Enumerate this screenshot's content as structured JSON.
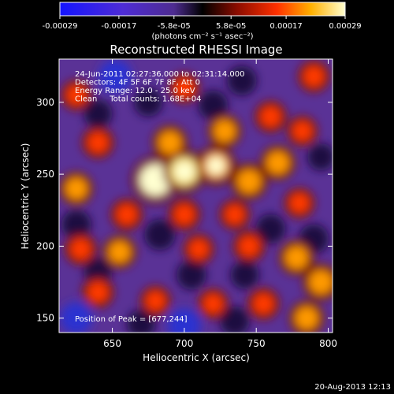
{
  "chart_data": {
    "type": "heatmap",
    "title": "Reconstructed RHESSI Image",
    "xlabel": "Heliocentric X (arcsec)",
    "ylabel": "Heliocentric Y (arcsec)",
    "xlim": [
      613,
      803
    ],
    "ylim": [
      140,
      330
    ],
    "x_ticks": [
      650,
      700,
      750,
      800
    ],
    "y_ticks": [
      150,
      200,
      250,
      300
    ],
    "colorbar": {
      "label": "(photons cm⁻² s⁻¹ asec⁻²)",
      "range": [
        -0.00029,
        0.00029
      ],
      "ticks": [
        "-0.00029",
        "-0.00017",
        "-5.8e-05",
        "5.8e-05",
        "0.00017",
        "0.00029"
      ],
      "tick_values": [
        -0.00029,
        -0.00017,
        -5.8e-05,
        5.8e-05,
        0.00017,
        0.00029
      ]
    },
    "annotations": [
      "24-Jun-2011 02:27:36.000 to 02:31:14.000",
      "Detectors: 4F 5F 6F 7F 8F, Att 0",
      "Energy Range: 12.0 - 25.0 keV",
      "Clean     Total counts: 1.68E+04",
      "Position of Peak = [677,244]"
    ],
    "peak": {
      "x": 677,
      "y": 244
    },
    "bright_regions": [
      {
        "x": 680,
        "y": 246,
        "level": 1.0
      },
      {
        "x": 700,
        "y": 252,
        "level": 0.85
      },
      {
        "x": 722,
        "y": 256,
        "level": 0.7
      },
      {
        "x": 745,
        "y": 245,
        "level": 0.6
      },
      {
        "x": 765,
        "y": 258,
        "level": 0.55
      },
      {
        "x": 690,
        "y": 272,
        "level": 0.55
      },
      {
        "x": 728,
        "y": 280,
        "level": 0.5
      },
      {
        "x": 760,
        "y": 290,
        "level": 0.45
      },
      {
        "x": 782,
        "y": 280,
        "level": 0.4
      },
      {
        "x": 640,
        "y": 272,
        "level": 0.45
      },
      {
        "x": 625,
        "y": 240,
        "level": 0.5
      },
      {
        "x": 660,
        "y": 222,
        "level": 0.45
      },
      {
        "x": 700,
        "y": 222,
        "level": 0.45
      },
      {
        "x": 735,
        "y": 222,
        "level": 0.4
      },
      {
        "x": 780,
        "y": 230,
        "level": 0.4
      },
      {
        "x": 655,
        "y": 196,
        "level": 0.5
      },
      {
        "x": 628,
        "y": 198,
        "level": 0.45
      },
      {
        "x": 710,
        "y": 198,
        "level": 0.4
      },
      {
        "x": 745,
        "y": 200,
        "level": 0.45
      },
      {
        "x": 778,
        "y": 192,
        "level": 0.55
      },
      {
        "x": 795,
        "y": 175,
        "level": 0.6
      },
      {
        "x": 785,
        "y": 150,
        "level": 0.55
      },
      {
        "x": 755,
        "y": 160,
        "level": 0.45
      },
      {
        "x": 720,
        "y": 160,
        "level": 0.4
      },
      {
        "x": 680,
        "y": 162,
        "level": 0.4
      },
      {
        "x": 640,
        "y": 168,
        "level": 0.45
      },
      {
        "x": 625,
        "y": 305,
        "level": 0.4
      },
      {
        "x": 700,
        "y": 310,
        "level": 0.4
      },
      {
        "x": 790,
        "y": 318,
        "level": 0.45
      }
    ],
    "dark_regions": [
      {
        "x": 652,
        "y": 318,
        "level": 0.9
      },
      {
        "x": 740,
        "y": 315,
        "level": 0.6
      },
      {
        "x": 640,
        "y": 292,
        "level": 0.5
      },
      {
        "x": 720,
        "y": 298,
        "level": 0.6
      },
      {
        "x": 625,
        "y": 215,
        "level": 0.6
      },
      {
        "x": 683,
        "y": 208,
        "level": 0.7
      },
      {
        "x": 760,
        "y": 212,
        "level": 0.6
      },
      {
        "x": 790,
        "y": 205,
        "level": 0.6
      },
      {
        "x": 640,
        "y": 182,
        "level": 0.5
      },
      {
        "x": 705,
        "y": 180,
        "level": 0.6
      },
      {
        "x": 742,
        "y": 180,
        "level": 0.5
      },
      {
        "x": 625,
        "y": 150,
        "level": 0.8
      },
      {
        "x": 700,
        "y": 145,
        "level": 0.9
      },
      {
        "x": 735,
        "y": 148,
        "level": 0.6
      },
      {
        "x": 670,
        "y": 146,
        "level": 0.5
      },
      {
        "x": 795,
        "y": 262,
        "level": 0.4
      },
      {
        "x": 675,
        "y": 300,
        "level": 0.5
      }
    ]
  },
  "footer": {
    "timestamp": "20-Aug-2013 12:13"
  }
}
